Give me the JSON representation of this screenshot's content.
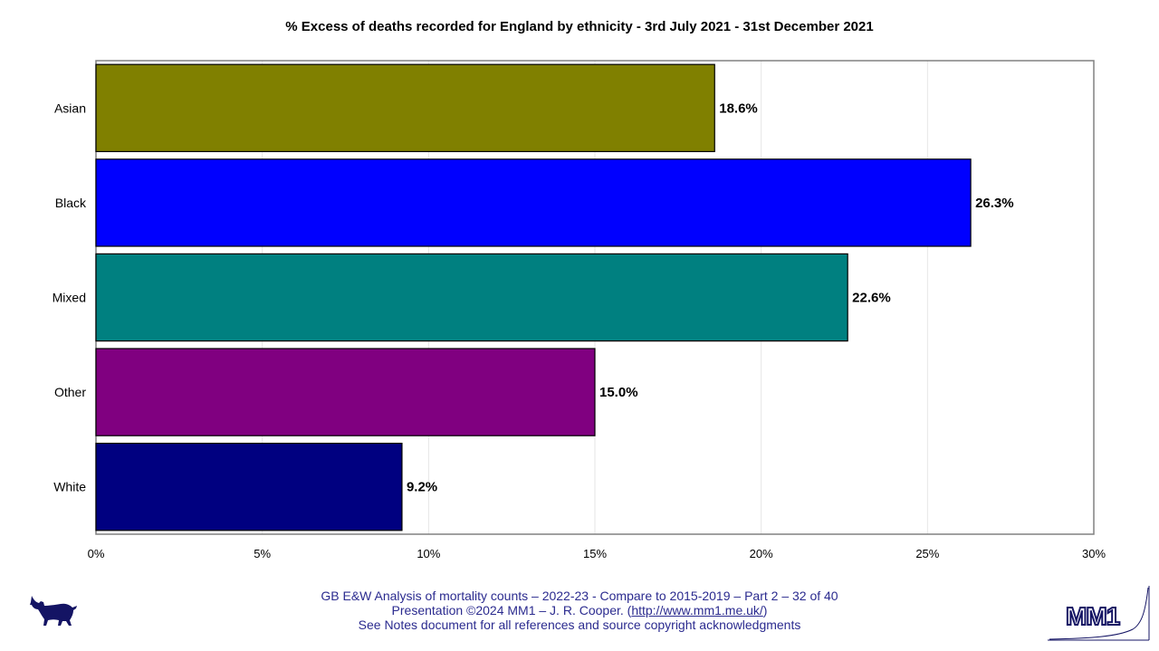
{
  "chart_data": {
    "type": "bar",
    "orientation": "horizontal",
    "title": "% Excess of deaths recorded for England by ethnicity - 3rd July 2021 - 31st December 2021",
    "categories": [
      "Asian",
      "Black",
      "Mixed",
      "Other",
      "White"
    ],
    "values": [
      18.6,
      26.3,
      22.6,
      15.0,
      9.2
    ],
    "data_labels": [
      "18.6%",
      "26.3%",
      "22.6%",
      "15.0%",
      "9.2%"
    ],
    "colors": [
      "#808000",
      "#0000ff",
      "#008080",
      "#800080",
      "#000080"
    ],
    "xlim": [
      0,
      30
    ],
    "x_ticks": [
      0,
      5,
      10,
      15,
      20,
      25,
      30
    ],
    "x_tick_labels": [
      "0%",
      "5%",
      "10%",
      "15%",
      "20%",
      "25%",
      "30%"
    ],
    "grid": true,
    "legend": "none"
  },
  "footer": {
    "line1": "GB E&W Analysis of mortality counts – 2022-23 - Compare to 2015-2019 – Part 2 – 32 of 40",
    "line2_prefix": "Presentation ©2024 MM1 – J. R. Cooper. (",
    "line2_link": "http://www.mm1.me.uk/",
    "line2_suffix": ")",
    "line3": "See Notes document for all references and source copyright acknowledgments"
  },
  "logos": {
    "left": "dog-icon",
    "right": "mm1-logo-icon",
    "right_text": "MM1"
  },
  "colors": {
    "footer_text": "#2b2b8f",
    "axis": "#808080",
    "grid": "#e6e6e6"
  }
}
